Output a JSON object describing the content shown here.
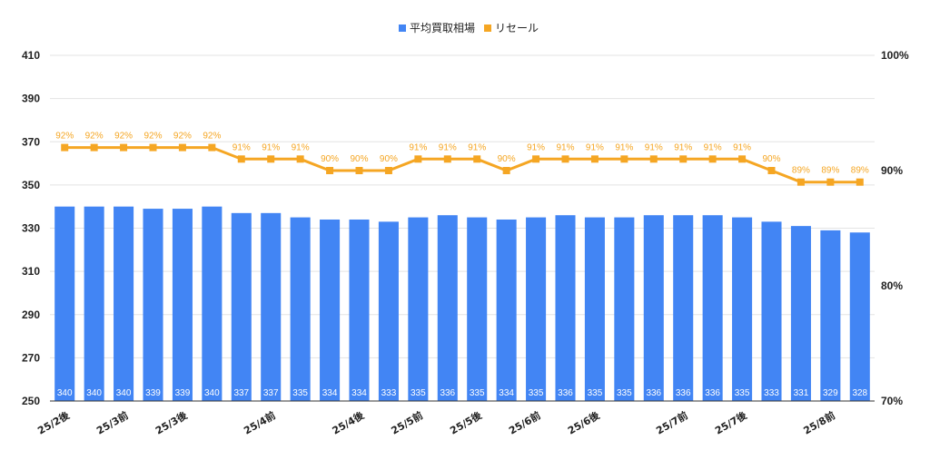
{
  "chart_data": {
    "type": "bar",
    "categories": [
      "25/2後",
      "",
      "25/3前",
      "",
      "25/3後",
      "",
      "",
      "25/4前",
      "",
      "",
      "25/4後",
      "",
      "25/5前",
      "",
      "25/5後",
      "",
      "25/6前",
      "",
      "25/6後",
      "",
      "",
      "25/7前",
      "",
      "25/7後",
      "",
      "",
      "25/8前",
      ""
    ],
    "series": [
      {
        "name": "平均買取相場",
        "type": "bar",
        "color": "#4285f4",
        "values": [
          340,
          340,
          340,
          339,
          339,
          340,
          337,
          337,
          335,
          334,
          334,
          333,
          335,
          336,
          335,
          334,
          335,
          336,
          335,
          335,
          336,
          336,
          336,
          335,
          333,
          331,
          329,
          328
        ],
        "labels": [
          "340",
          "340",
          "340",
          "339",
          "339",
          "340",
          "337",
          "337",
          "335",
          "334",
          "334",
          "333",
          "335",
          "336",
          "335",
          "334",
          "335",
          "336",
          "335",
          "335",
          "336",
          "336",
          "336",
          "335",
          "333",
          "331",
          "329",
          "328"
        ]
      },
      {
        "name": "リセール",
        "type": "line",
        "color": "#f5a623",
        "values": [
          92,
          92,
          92,
          92,
          92,
          92,
          91,
          91,
          91,
          90,
          90,
          90,
          91,
          91,
          91,
          90,
          91,
          91,
          91,
          91,
          91,
          91,
          91,
          91,
          90,
          89,
          89,
          89
        ],
        "labels": [
          "92%",
          "92%",
          "92%",
          "92%",
          "92%",
          "92%",
          "91%",
          "91%",
          "91%",
          "90%",
          "90%",
          "90%",
          "91%",
          "91%",
          "91%",
          "90%",
          "91%",
          "91%",
          "91%",
          "91%",
          "91%",
          "91%",
          "91%",
          "91%",
          "90%",
          "89%",
          "89%",
          "89%"
        ]
      }
    ],
    "y_left": {
      "ticks": [
        "410",
        "390",
        "370",
        "350",
        "330",
        "310",
        "290",
        "270",
        "250"
      ],
      "ylim": [
        250,
        410
      ]
    },
    "y_right": {
      "ticks": [
        "100%",
        "90%",
        "80%",
        "70%"
      ],
      "ylim": [
        70,
        100
      ]
    },
    "legend_position": "top-center",
    "grid": true
  }
}
